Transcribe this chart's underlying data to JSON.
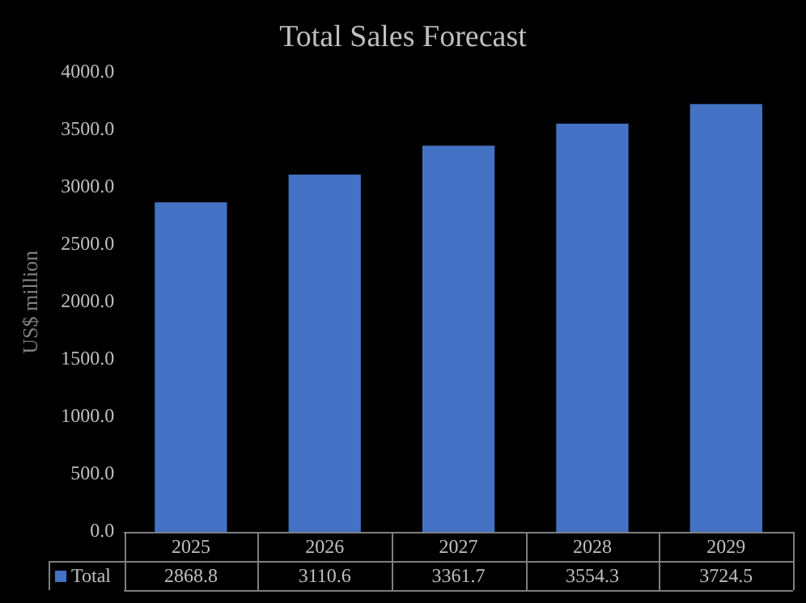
{
  "chart_data": {
    "type": "bar",
    "title": "Total Sales Forecast",
    "ylabel": "US$ million",
    "categories": [
      "2025",
      "2026",
      "2027",
      "2028",
      "2029"
    ],
    "series": [
      {
        "name": "Total",
        "color": "#4472c4",
        "values": [
          2868.8,
          3110.6,
          3361.7,
          3554.3,
          3724.5
        ]
      }
    ],
    "ylim": [
      0,
      4000
    ],
    "yticks": [
      {
        "value": 0,
        "label": "0.0"
      },
      {
        "value": 500,
        "label": "500.0"
      },
      {
        "value": 1000,
        "label": "1000.0"
      },
      {
        "value": 1500,
        "label": "1500.0"
      },
      {
        "value": 2000,
        "label": "2000.0"
      },
      {
        "value": 2500,
        "label": "2500.0"
      },
      {
        "value": 3000,
        "label": "3000.0"
      },
      {
        "value": 3500,
        "label": "3500.0"
      },
      {
        "value": 4000,
        "label": "4000.0"
      }
    ],
    "value_labels": [
      "2868.8",
      "3110.6",
      "3361.7",
      "3554.3",
      "3724.5"
    ],
    "grid": false,
    "legend": "bottom"
  }
}
